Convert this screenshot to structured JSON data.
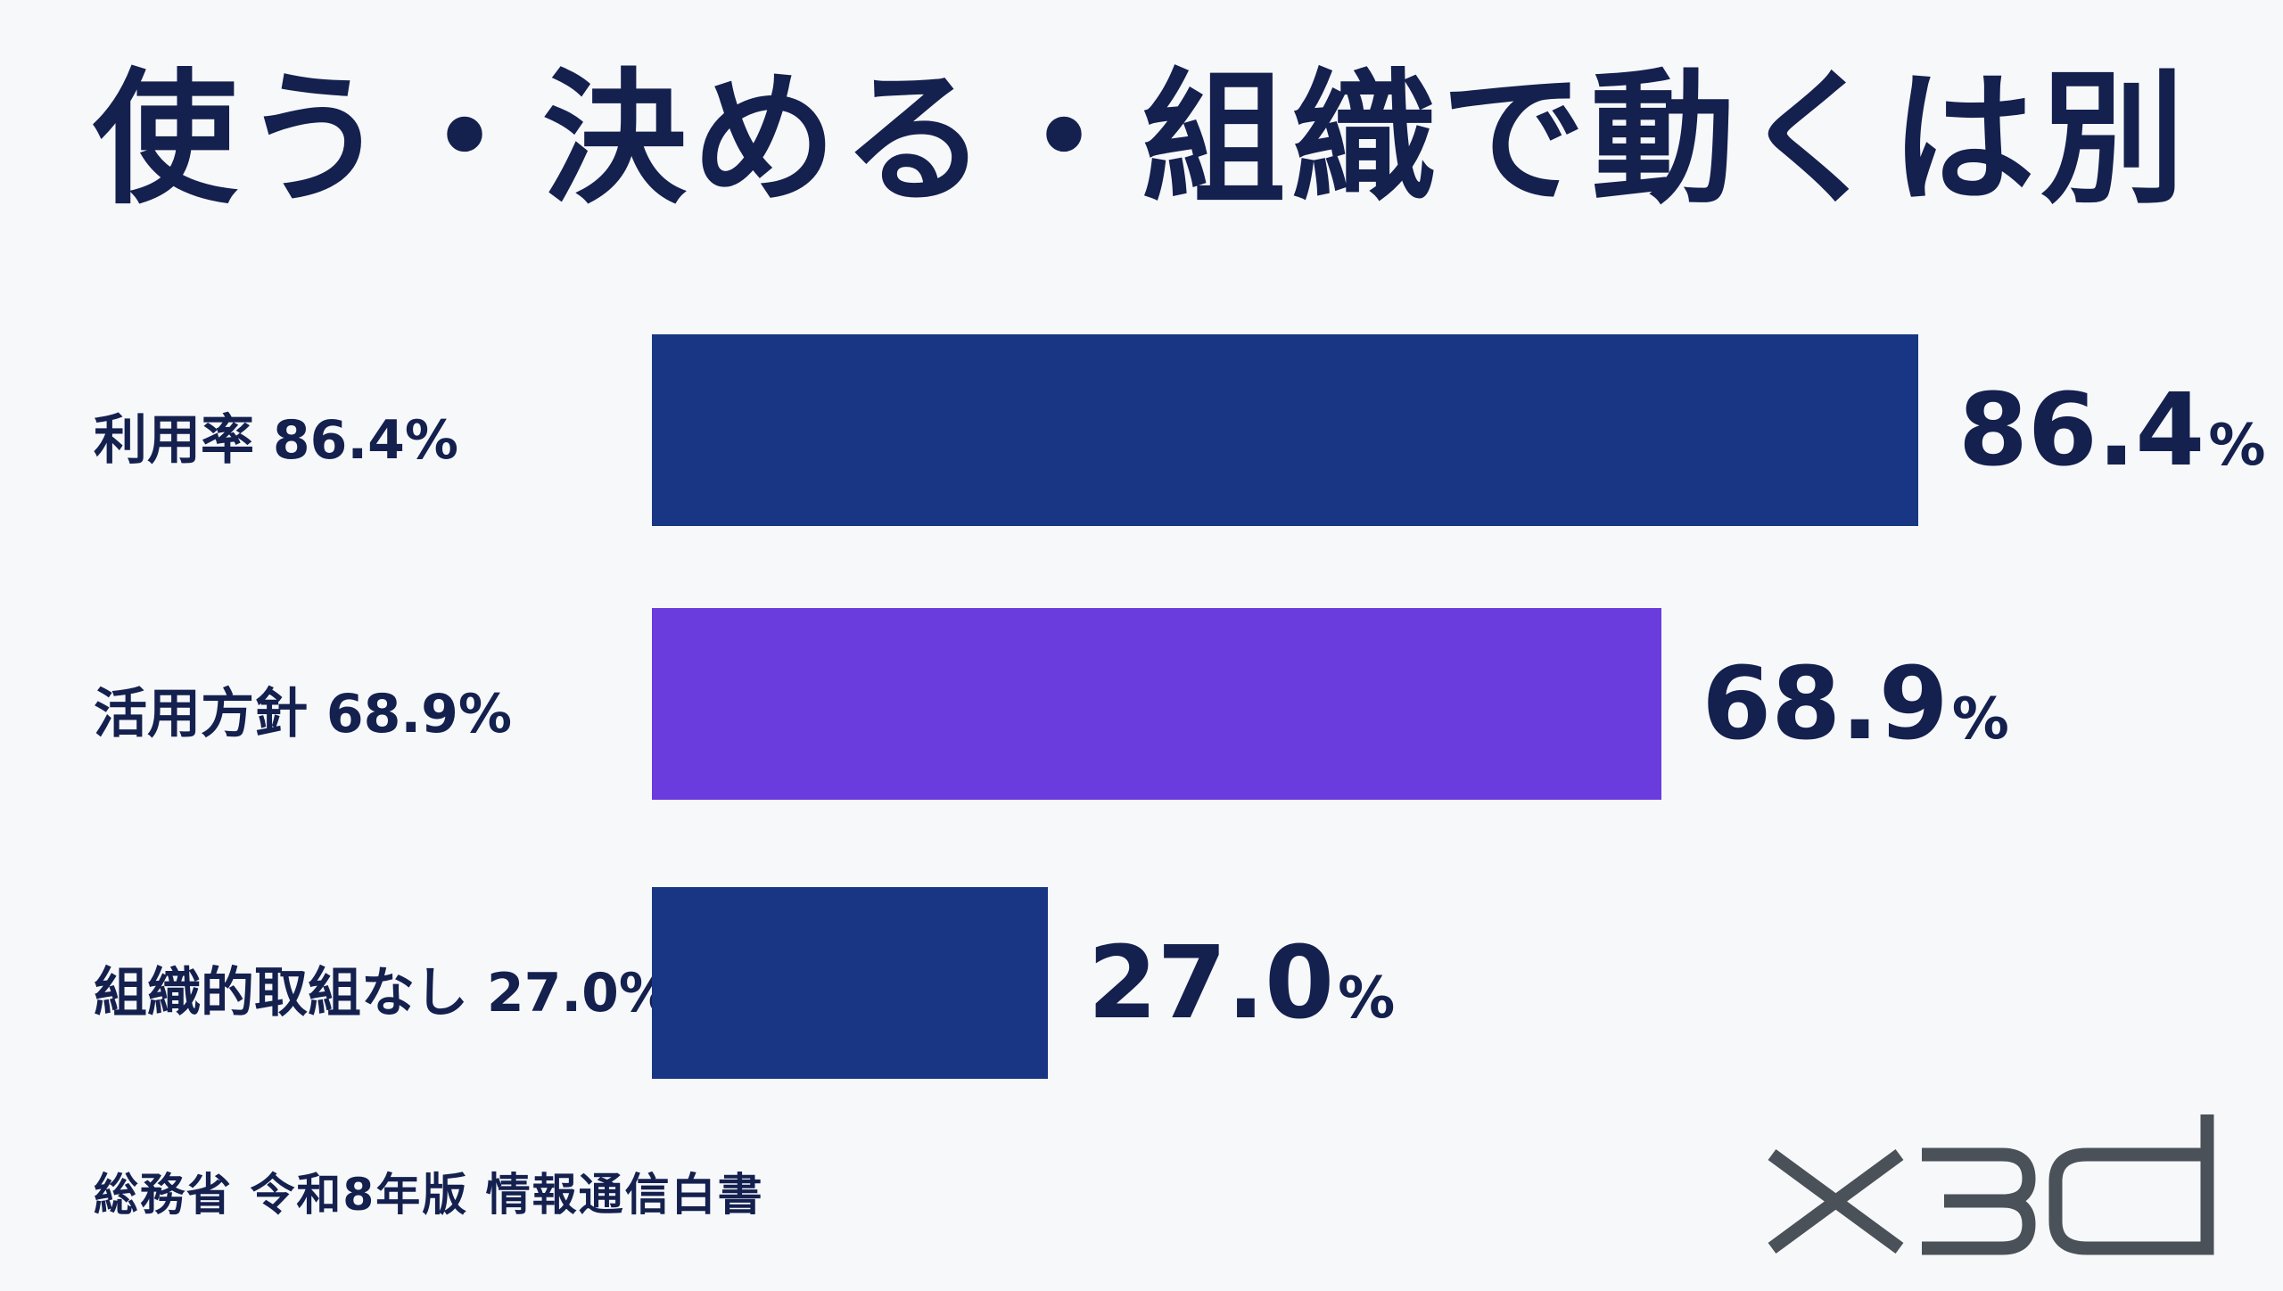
{
  "title": "使う・決める・組織で動くは別",
  "colors": {
    "navy": "#183684",
    "purple": "#6a3cde",
    "text": "#14204e",
    "logo": "#4a5158"
  },
  "chart_data": {
    "type": "bar",
    "orientation": "horizontal",
    "categories": [
      "利用率",
      "活用方針",
      "組織的取組なし"
    ],
    "values": [
      86.4,
      68.9,
      27.0
    ],
    "unit": "%",
    "row_labels": [
      "利用率 86.4%",
      "活用方針 68.9%",
      "組織的取組なし 27.0%"
    ],
    "value_labels": [
      "86.4",
      "68.9",
      "27.0"
    ],
    "bar_colors": [
      "#183684",
      "#6a3cde",
      "#183684"
    ],
    "xlim": [
      0,
      100
    ]
  },
  "source": "総務省 令和8年版 情報通信白書",
  "logo": {
    "text": "X3d",
    "icon": "x3d-logo"
  }
}
